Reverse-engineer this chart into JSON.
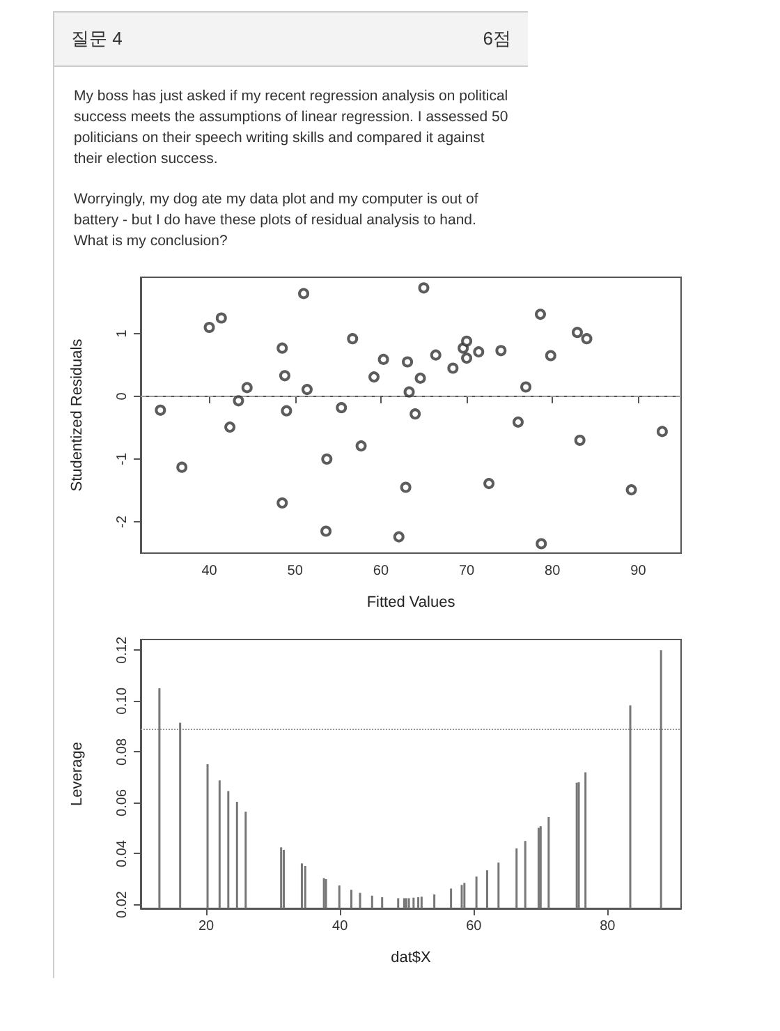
{
  "chart_data": [
    {
      "type": "scatter",
      "title": "질문 4",
      "annotations": [
        "6점",
        "My boss has just asked if my recent regression analysis on political success meets the assumptions of linear regression.  I assessed 50 politicians on their speech writing skills and compared it against their election success.",
        "Worryingly, my dog ate my data plot and my computer is out of battery -  but I do have these plots of residual analysis to hand.",
        "What is my conclusion?"
      ],
      "xlabel": "Fitted Values",
      "ylabel": "Studentized Residuals",
      "xlim": [
        32,
        95
      ],
      "ylim": [
        -2.5,
        1.9
      ],
      "xticks": [
        40,
        50,
        60,
        70,
        80,
        90
      ],
      "yticks": [
        -2,
        -1,
        0,
        1
      ],
      "marker": "circle",
      "ref_lines": [
        {
          "axis": "y",
          "value": 0,
          "line_style": "dashed",
          "color": "#999999"
        }
      ],
      "series": [
        {
          "color": "#333333",
          "x": [
            34.3,
            36.8,
            40,
            41.4,
            42.4,
            43.4,
            44.4,
            48.5,
            48.8,
            49,
            48.5,
            51,
            51.4,
            53.6,
            53.7,
            55.4,
            56.7,
            57.7,
            59.2,
            60.3,
            62.1,
            62.9,
            63.1,
            63.3,
            64,
            64.6,
            65,
            66.4,
            68.4,
            69.6,
            70,
            70,
            71.4,
            72.6,
            74,
            76,
            76.9,
            78.6,
            78.7,
            79.8,
            82.9,
            83.2,
            84,
            89.2,
            92.8
          ],
          "values": [
            -0.22,
            -1.13,
            1.1,
            1.25,
            -0.49,
            -0.07,
            0.14,
            0.77,
            0.33,
            -0.23,
            -1.7,
            1.64,
            0.11,
            -2.15,
            -1,
            -0.18,
            0.92,
            -0.79,
            0.31,
            0.59,
            -2.24,
            -1.45,
            0.55,
            0.07,
            -0.28,
            0.29,
            1.73,
            0.66,
            0.45,
            0.77,
            0.88,
            0.61,
            0.71,
            -1.39,
            0.73,
            -0.41,
            0.15,
            1.31,
            -2.35,
            0.65,
            1.02,
            -0.7,
            0.92,
            -1.49,
            -0.56
          ]
        }
      ]
    },
    {
      "type": "bar",
      "xlabel": "dat$X",
      "ylabel": "Leverage",
      "xlim": [
        10.2,
        91
      ],
      "ylim": [
        0.0185,
        0.1242
      ],
      "xticks": [
        20,
        40,
        60,
        80
      ],
      "yticks": [
        0.02,
        0.04,
        0.06,
        0.08,
        {
          "value": 0.1,
          "label": "0.10"
        },
        0.12
      ],
      "ref_lines": [
        {
          "axis": "y",
          "value": 0.0889,
          "line_style": "dotted",
          "color": "#999999"
        }
      ],
      "series": [
        {
          "color": "#777777",
          "x": [
            13,
            16.1,
            20.2,
            22,
            23.3,
            24.6,
            25.9,
            31.2,
            31.6,
            34.3,
            34.8,
            37.6,
            37.9,
            39.9,
            41.7,
            43,
            44.8,
            46.3,
            48.7,
            49.6,
            49.9,
            50.3,
            51,
            51.7,
            52.2,
            54.1,
            56.6,
            58.2,
            58.6,
            60.4,
            62,
            63.7,
            66.4,
            67.7,
            69.7,
            70,
            71.2,
            75.4,
            75.7,
            76.7,
            83.4,
            88
          ],
          "values": [
            0.105,
            0.0915,
            0.0752,
            0.0688,
            0.0646,
            0.0604,
            0.0565,
            0.0425,
            0.0415,
            0.0362,
            0.0352,
            0.0304,
            0.03,
            0.0275,
            0.0258,
            0.0246,
            0.0235,
            0.0229,
            0.0225,
            0.0225,
            0.0225,
            0.0225,
            0.0227,
            0.0229,
            0.0231,
            0.024,
            0.0263,
            0.0277,
            0.0285,
            0.031,
            0.0335,
            0.0365,
            0.0421,
            0.045,
            0.0502,
            0.0508,
            0.0544,
            0.0679,
            0.0681,
            0.072,
            0.0983,
            0.12
          ]
        }
      ]
    }
  ]
}
